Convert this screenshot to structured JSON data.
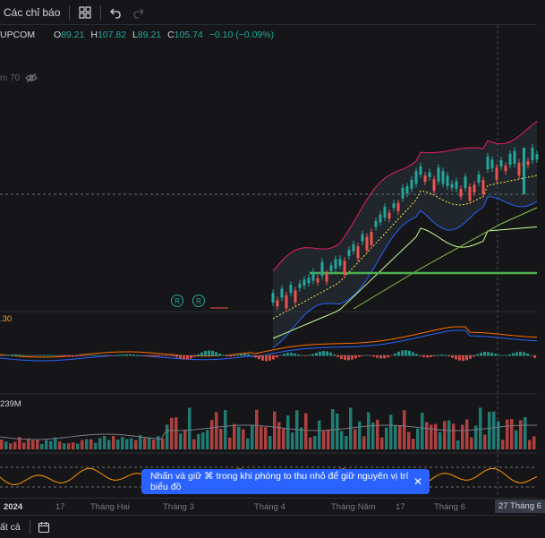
{
  "toolbar": {
    "indicators_label": "Các chỉ báo"
  },
  "legend": {
    "symbol": "UPCOM",
    "open_label": "O",
    "open": "89.21",
    "high_label": "H",
    "high": "107.82",
    "low_label": "L",
    "low": "89.21",
    "close_label": "C",
    "close": "105.74",
    "change": "−0.10 (−0.09%)"
  },
  "indicator_label": "m 70",
  "macd_label": ".30",
  "volume_label": "239M",
  "toast": {
    "message": "Nhấn và giữ ⌘ trong khi phóng to thu nhỏ để giữ nguyên vị trí biểu đồ"
  },
  "time_axis": {
    "ticks": [
      "2024",
      "17",
      "Tháng Hai",
      "Tháng 3",
      "Tháng 4",
      "Tháng Năm",
      "17",
      "Tháng 6"
    ],
    "highlight": "27 Tháng 6"
  },
  "bottombar": {
    "label": "ất cả"
  },
  "colors": {
    "up": "#26a69a",
    "down": "#ef5350",
    "accent": "#2962ff",
    "support_line": "#4caf50"
  }
}
